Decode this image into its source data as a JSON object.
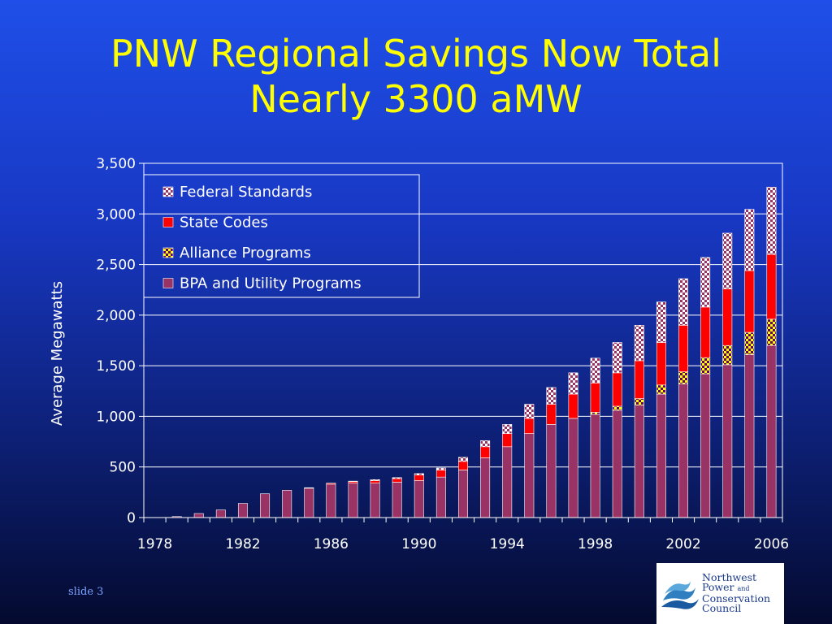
{
  "slide": {
    "title_line1": "PNW Regional Savings Now Total",
    "title_line2": "Nearly 3300 aMW",
    "slide_number": "slide 3"
  },
  "logo": {
    "line1": "Northwest",
    "line2_a": "Power",
    "line2_b": "and",
    "line3": "Conservation",
    "line4": "Council"
  },
  "colors": {
    "title": "#ffff00",
    "bpa": "#993366",
    "alliance_fill": "#ffff00",
    "alliance_check": "#660066",
    "state": "#ff0000",
    "federal_fill": "#ffffff",
    "federal_check": "#993366",
    "text": "#ffffff"
  },
  "chart_data": {
    "type": "bar",
    "stacked": true,
    "ylabel": "Average Megawatts",
    "ylim": [
      0,
      3500
    ],
    "yticks": [
      0,
      500,
      1000,
      1500,
      2000,
      2500,
      3000,
      3500
    ],
    "ytick_labels": [
      "0",
      "500",
      "1,000",
      "1,500",
      "2,000",
      "2,500",
      "3,000",
      "3,500"
    ],
    "xtick_labels": [
      "1978",
      "1982",
      "1986",
      "1990",
      "1994",
      "1998",
      "2002",
      "2006"
    ],
    "grid": true,
    "legend_position": "top-left",
    "categories": [
      1978,
      1979,
      1980,
      1981,
      1982,
      1983,
      1984,
      1985,
      1986,
      1987,
      1988,
      1989,
      1990,
      1991,
      1992,
      1993,
      1994,
      1995,
      1996,
      1997,
      1998,
      1999,
      2000,
      2001,
      2002,
      2003,
      2004,
      2005,
      2006
    ],
    "series": [
      {
        "name": "Federal Standards",
        "pattern": "checker",
        "values": [
          0,
          0,
          0,
          0,
          0,
          0,
          0,
          0,
          0,
          5,
          10,
          10,
          15,
          20,
          40,
          60,
          90,
          140,
          165,
          210,
          245,
          300,
          350,
          400,
          460,
          490,
          550,
          605,
          665
        ]
      },
      {
        "name": "State Codes",
        "pattern": "solid",
        "values": [
          0,
          0,
          0,
          0,
          0,
          0,
          0,
          5,
          10,
          15,
          25,
          35,
          55,
          70,
          85,
          110,
          130,
          150,
          200,
          240,
          290,
          330,
          375,
          420,
          460,
          500,
          560,
          610,
          640
        ]
      },
      {
        "name": "Alliance Programs",
        "pattern": "checker",
        "values": [
          0,
          0,
          0,
          0,
          0,
          0,
          0,
          0,
          0,
          0,
          0,
          0,
          0,
          0,
          0,
          0,
          0,
          0,
          0,
          0,
          20,
          40,
          65,
          90,
          120,
          160,
          190,
          220,
          260
        ]
      },
      {
        "name": "BPA and Utility Programs",
        "pattern": "solid",
        "values": [
          0,
          10,
          40,
          75,
          140,
          235,
          270,
          290,
          330,
          340,
          340,
          350,
          365,
          400,
          470,
          590,
          700,
          830,
          920,
          980,
          1020,
          1060,
          1110,
          1220,
          1320,
          1420,
          1510,
          1610,
          1700
        ]
      }
    ]
  }
}
